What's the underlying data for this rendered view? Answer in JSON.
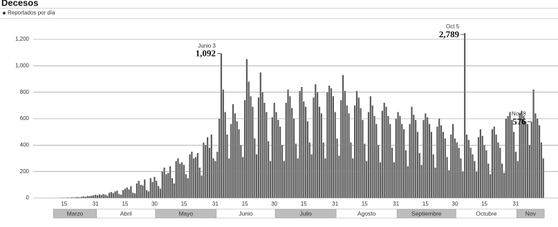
{
  "chart_data": {
    "type": "bar",
    "title": "Decesos",
    "legend_label": "Reportados por día",
    "color": "#5a5a5a",
    "ylim": [
      0,
      1200
    ],
    "yticks": [
      0,
      200,
      400,
      600,
      800,
      {
        "value": 1000,
        "label": "1,000"
      },
      {
        "value": 1200,
        "label": "1,200"
      }
    ],
    "grid": true,
    "months": [
      "Marzo",
      "Abril",
      "Mayo",
      "Junio",
      "Julio",
      "Agosto",
      "Septiembre",
      "Octubre",
      "Nov"
    ],
    "categories": [
      null,
      null,
      null,
      null,
      null,
      "15",
      null,
      null,
      null,
      null,
      null,
      null,
      null,
      null,
      null,
      null,
      null,
      null,
      null,
      null,
      null,
      "31",
      null,
      null,
      null,
      null,
      null,
      null,
      null,
      null,
      null,
      null,
      null,
      null,
      null,
      null,
      "15",
      null,
      null,
      null,
      null,
      null,
      null,
      null,
      null,
      null,
      null,
      null,
      null,
      null,
      null,
      "30",
      null,
      null,
      null,
      null,
      null,
      null,
      null,
      null,
      null,
      null,
      null,
      null,
      null,
      null,
      "15",
      null,
      null,
      null,
      null,
      null,
      null,
      null,
      null,
      null,
      null,
      null,
      null,
      null,
      null,
      null,
      "31",
      null,
      null,
      null,
      null,
      null,
      null,
      null,
      null,
      null,
      null,
      null,
      null,
      null,
      null,
      "15",
      null,
      null,
      null,
      null,
      null,
      null,
      null,
      null,
      null,
      null,
      null,
      null,
      null,
      null,
      "30",
      null,
      null,
      null,
      null,
      null,
      null,
      null,
      null,
      null,
      null,
      null,
      null,
      null,
      null,
      "15",
      null,
      null,
      null,
      null,
      null,
      null,
      null,
      null,
      null,
      null,
      null,
      null,
      null,
      null,
      null,
      "31",
      null,
      null,
      null,
      null,
      null,
      null,
      null,
      null,
      null,
      null,
      null,
      null,
      null,
      null,
      "15",
      null,
      null,
      null,
      null,
      null,
      null,
      null,
      null,
      null,
      null,
      null,
      null,
      null,
      null,
      null,
      "31",
      null,
      null,
      null,
      null,
      null,
      null,
      null,
      null,
      null,
      null,
      null,
      null,
      null,
      null,
      "15",
      null,
      null,
      null,
      null,
      null,
      null,
      null,
      null,
      null,
      null,
      null,
      null,
      null,
      null,
      "30",
      null,
      null,
      null,
      null,
      null,
      null,
      null,
      null,
      null,
      null,
      null,
      null,
      null,
      null,
      "15",
      null,
      null,
      null,
      null,
      null,
      null,
      null,
      null,
      null,
      null,
      null,
      null,
      null,
      null,
      null,
      "31",
      null,
      null,
      null,
      null,
      null,
      null,
      null,
      null,
      null,
      null,
      null,
      null,
      null,
      null
    ],
    "values": [
      1,
      0,
      2,
      1,
      3,
      1,
      2,
      4,
      3,
      5,
      4,
      6,
      8,
      5,
      10,
      12,
      9,
      15,
      14,
      18,
      20,
      25,
      20,
      28,
      22,
      30,
      25,
      18,
      40,
      45,
      38,
      50,
      55,
      30,
      25,
      60,
      70,
      80,
      65,
      90,
      40,
      35,
      110,
      130,
      100,
      95,
      140,
      60,
      50,
      150,
      120,
      160,
      130,
      90,
      70,
      200,
      230,
      180,
      190,
      240,
      150,
      110,
      280,
      300,
      260,
      270,
      250,
      180,
      150,
      330,
      350,
      300,
      310,
      340,
      230,
      170,
      420,
      400,
      460,
      380,
      480,
      300,
      280,
      350,
      600,
      1092,
      820,
      650,
      480,
      300,
      560,
      710,
      640,
      580,
      520,
      400,
      310,
      740,
      1050,
      880,
      770,
      690,
      450,
      330,
      760,
      950,
      800,
      720,
      650,
      430,
      280,
      610,
      720,
      650,
      590,
      540,
      400,
      280,
      720,
      820,
      770,
      680,
      600,
      410,
      300,
      810,
      840,
      730,
      690,
      580,
      420,
      330,
      760,
      860,
      800,
      690,
      640,
      420,
      300,
      800,
      850,
      830,
      770,
      650,
      450,
      320,
      740,
      930,
      810,
      700,
      640,
      420,
      300,
      700,
      810,
      760,
      680,
      590,
      410,
      280,
      650,
      770,
      700,
      620,
      560,
      400,
      270,
      660,
      720,
      690,
      620,
      560,
      380,
      270,
      600,
      650,
      620,
      560,
      520,
      360,
      240,
      560,
      690,
      630,
      590,
      500,
      340,
      250,
      590,
      640,
      610,
      560,
      500,
      330,
      230,
      540,
      600,
      550,
      500,
      450,
      310,
      210,
      480,
      560,
      450,
      420,
      380,
      300,
      200,
      2789,
      480,
      440,
      380,
      330,
      280,
      200,
      460,
      520,
      470,
      400,
      360,
      260,
      180,
      520,
      540,
      480,
      420,
      380,
      260,
      190,
      600,
      620,
      650,
      590,
      500,
      350,
      280,
      640,
      660,
      620,
      580,
      560,
      400,
      576,
      820,
      640,
      600,
      550,
      420,
      300
    ],
    "value_labels": [
      null,
      null,
      null,
      null,
      null,
      null,
      null,
      null,
      null,
      null,
      null,
      null,
      null,
      null,
      null,
      null,
      null,
      null,
      null,
      null,
      null,
      null,
      null,
      null,
      null,
      null,
      null,
      null,
      null,
      null,
      null,
      null,
      null,
      null,
      null,
      null,
      null,
      null,
      null,
      null,
      null,
      null,
      null,
      null,
      null,
      null,
      null,
      null,
      null,
      null,
      null,
      null,
      null,
      null,
      null,
      null,
      null,
      null,
      null,
      null,
      null,
      null,
      null,
      null,
      null,
      null,
      null,
      null,
      null,
      null,
      null,
      null,
      null,
      null,
      null,
      null,
      null,
      null,
      null,
      null,
      null,
      null,
      null,
      null,
      null,
      "1,092",
      null,
      null,
      null,
      null,
      null,
      null,
      null,
      null,
      null,
      null,
      null,
      null,
      null,
      null,
      null,
      null,
      null,
      null,
      null,
      null,
      null,
      null,
      null,
      null,
      null,
      null,
      null,
      null,
      null,
      null,
      null,
      null,
      null,
      null,
      null,
      null,
      null,
      null,
      null,
      null,
      null,
      null,
      null,
      null,
      null,
      null,
      null,
      null,
      null,
      null,
      null,
      null,
      null,
      null,
      null,
      null,
      null,
      null,
      null,
      null,
      null,
      null,
      null,
      null,
      null,
      null,
      null,
      null,
      null,
      null,
      null,
      null,
      null,
      null,
      null,
      null,
      null,
      null,
      null,
      null,
      null,
      null,
      null,
      null,
      null,
      null,
      null,
      null,
      null,
      null,
      null,
      null,
      null,
      null,
      null,
      null,
      null,
      null,
      null,
      null,
      null,
      null,
      null,
      null,
      null,
      null,
      null,
      null,
      null,
      null,
      null,
      null,
      null,
      null,
      null,
      null,
      null,
      null,
      null,
      null,
      null,
      null,
      null,
      "2,789",
      null,
      null,
      null,
      null,
      null,
      null,
      null,
      null,
      null,
      null,
      null,
      null,
      null,
      null,
      null,
      null,
      null,
      null,
      null,
      null,
      null,
      null,
      null,
      null,
      null,
      null,
      null,
      null,
      null,
      null,
      null,
      null,
      null,
      "576",
      null,
      null,
      null,
      null,
      null,
      null
    ],
    "date_labels": [
      null,
      null,
      null,
      null,
      null,
      null,
      null,
      null,
      null,
      null,
      null,
      null,
      null,
      null,
      null,
      null,
      null,
      null,
      null,
      null,
      null,
      null,
      null,
      null,
      null,
      null,
      null,
      null,
      null,
      null,
      null,
      null,
      null,
      null,
      null,
      null,
      null,
      null,
      null,
      null,
      null,
      null,
      null,
      null,
      null,
      null,
      null,
      null,
      null,
      null,
      null,
      null,
      null,
      null,
      null,
      null,
      null,
      null,
      null,
      null,
      null,
      null,
      null,
      null,
      null,
      null,
      null,
      null,
      null,
      null,
      null,
      null,
      null,
      null,
      null,
      null,
      null,
      null,
      null,
      null,
      null,
      null,
      null,
      null,
      null,
      "Junio 3",
      null,
      null,
      null,
      null,
      null,
      null,
      null,
      null,
      null,
      null,
      null,
      null,
      null,
      null,
      null,
      null,
      null,
      null,
      null,
      null,
      null,
      null,
      null,
      null,
      null,
      null,
      null,
      null,
      null,
      null,
      null,
      null,
      null,
      null,
      null,
      null,
      null,
      null,
      null,
      null,
      null,
      null,
      null,
      null,
      null,
      null,
      null,
      null,
      null,
      null,
      null,
      null,
      null,
      null,
      null,
      null,
      null,
      null,
      null,
      null,
      null,
      null,
      null,
      null,
      null,
      null,
      null,
      null,
      null,
      null,
      null,
      null,
      null,
      null,
      null,
      null,
      null,
      null,
      null,
      null,
      null,
      null,
      null,
      null,
      null,
      null,
      null,
      null,
      null,
      null,
      null,
      null,
      null,
      null,
      null,
      null,
      null,
      null,
      null,
      null,
      null,
      null,
      null,
      null,
      null,
      null,
      null,
      null,
      null,
      null,
      null,
      null,
      null,
      null,
      null,
      null,
      null,
      null,
      null,
      null,
      null,
      null,
      null,
      "Oct 5",
      null,
      null,
      null,
      null,
      null,
      null,
      null,
      null,
      null,
      null,
      null,
      null,
      null,
      null,
      null,
      null,
      null,
      null,
      null,
      null,
      null,
      null,
      null,
      null,
      null,
      null,
      null,
      null,
      null,
      null,
      null,
      null,
      null,
      "Nov 8",
      null,
      null,
      null,
      null,
      null,
      null
    ]
  }
}
